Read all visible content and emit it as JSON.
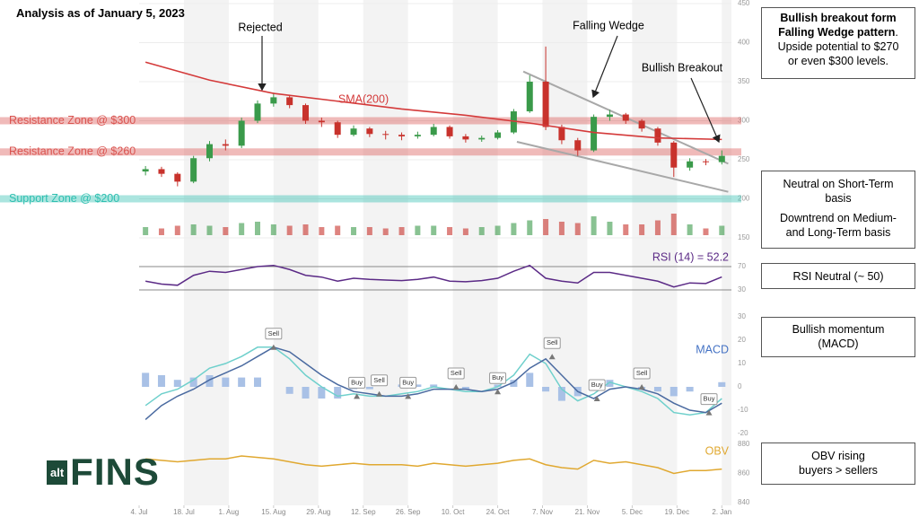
{
  "title": "Analysis as of January 5, 2023",
  "logo": {
    "small": "alt",
    "big": "FINS"
  },
  "notes": [
    {
      "bold": [
        "Bullish breakout form",
        "Falling Wedge pattern"
      ],
      "text": [
        ".",
        "Upside potential to $270",
        "or even $300 levels."
      ]
    },
    {
      "paragraphs": [
        [
          "Neutral on Short-Term",
          "basis"
        ],
        [
          "Downtrend on Medium-",
          "and Long-Term basis"
        ]
      ]
    },
    {
      "lines": [
        "RSI Neutral (~ 50)"
      ]
    },
    {
      "lines": [
        "Bullish momentum",
        "(MACD)"
      ]
    },
    {
      "lines": [
        "OBV rising",
        "buyers > sellers"
      ]
    }
  ],
  "chart_data": [
    {
      "type": "candlestick",
      "up_color": "#3a9a4a",
      "down_color": "#c8322c",
      "xlim": [
        0,
        185
      ],
      "xticks": [
        {
          "value": 0,
          "label": "4. Jul"
        },
        {
          "value": 14,
          "label": "18. Jul"
        },
        {
          "value": 28,
          "label": "1. Aug"
        },
        {
          "value": 42,
          "label": "15. Aug"
        },
        {
          "value": 56,
          "label": "29. Aug"
        },
        {
          "value": 70,
          "label": "12. Sep"
        },
        {
          "value": 84,
          "label": "26. Sep"
        },
        {
          "value": 98,
          "label": "10. Oct"
        },
        {
          "value": 112,
          "label": "24. Oct"
        },
        {
          "value": 126,
          "label": "7. Nov"
        },
        {
          "value": 140,
          "label": "21. Nov"
        },
        {
          "value": 154,
          "label": "5. Dec"
        },
        {
          "value": 168,
          "label": "19. Dec"
        },
        {
          "value": 182,
          "label": "2. Jan"
        }
      ],
      "ylim": [
        150,
        450
      ],
      "yticks": [
        150,
        200,
        250,
        300,
        350,
        400,
        450
      ],
      "grid": true,
      "x": [
        2,
        7,
        12,
        17,
        22,
        27,
        32,
        37,
        42,
        47,
        52,
        57,
        62,
        67,
        72,
        77,
        82,
        87,
        92,
        97,
        102,
        107,
        112,
        117,
        122,
        127,
        132,
        137,
        142,
        147,
        152,
        157,
        162,
        167,
        172,
        177,
        182
      ],
      "open": [
        235,
        238,
        232,
        222,
        252,
        270,
        268,
        300,
        322,
        330,
        320,
        300,
        298,
        282,
        290,
        283,
        282,
        280,
        282,
        292,
        280,
        276,
        278,
        285,
        312,
        350,
        292,
        275,
        262,
        305,
        308,
        300,
        290,
        272,
        240,
        248,
        247
      ],
      "high": [
        242,
        241,
        234,
        255,
        274,
        276,
        304,
        326,
        336,
        333,
        322,
        304,
        300,
        294,
        292,
        287,
        285,
        286,
        296,
        294,
        283,
        281,
        288,
        315,
        358,
        395,
        295,
        278,
        308,
        314,
        310,
        302,
        292,
        274,
        252,
        251,
        262
      ],
      "low": [
        230,
        228,
        216,
        220,
        248,
        262,
        265,
        297,
        318,
        316,
        296,
        292,
        278,
        280,
        279,
        276,
        275,
        277,
        280,
        277,
        272,
        273,
        276,
        283,
        310,
        288,
        270,
        255,
        260,
        300,
        296,
        286,
        268,
        228,
        236,
        243,
        244
      ],
      "close": [
        238,
        232,
        222,
        252,
        270,
        268,
        300,
        322,
        330,
        320,
        300,
        298,
        282,
        290,
        283,
        282,
        280,
        282,
        292,
        280,
        276,
        278,
        285,
        312,
        350,
        292,
        275,
        262,
        305,
        308,
        300,
        290,
        272,
        240,
        248,
        247,
        255
      ],
      "series": [
        {
          "name": "SMA(200)",
          "color": "#d43a3a",
          "x": [
            2,
            22,
            42,
            62,
            82,
            102,
            122,
            142,
            162,
            182
          ],
          "values": [
            375,
            352,
            335,
            325,
            315,
            307,
            297,
            285,
            278,
            276
          ]
        }
      ],
      "zones": [
        {
          "label": "Resistance Zone @ $300",
          "value": 300,
          "color": "#d9534f"
        },
        {
          "label": "Resistance Zone @ $260",
          "value": 260,
          "color": "#d9534f"
        },
        {
          "label": "Support Zone @ $200",
          "value": 200,
          "color": "#2ebfb0"
        }
      ],
      "trendlines": [
        {
          "color": "#a8a8a8",
          "x": [
            120,
            184
          ],
          "values": [
            363,
            245
          ]
        },
        {
          "color": "#a8a8a8",
          "x": [
            118,
            184
          ],
          "values": [
            273,
            209
          ]
        }
      ],
      "annotations": [
        "Rejected",
        "Falling Wedge",
        "Bullish Breakout"
      ]
    },
    {
      "type": "bar",
      "ylim": [
        0,
        100
      ],
      "values": [
        30,
        25,
        35,
        40,
        35,
        30,
        45,
        50,
        40,
        35,
        40,
        30,
        35,
        30,
        30,
        25,
        30,
        35,
        35,
        30,
        25,
        30,
        35,
        45,
        55,
        60,
        50,
        45,
        70,
        50,
        40,
        40,
        55,
        80,
        40,
        25,
        35
      ]
    },
    {
      "type": "line",
      "label": "RSI (14) = 52.2",
      "label_color": "#5b2a86",
      "ylim": [
        20,
        80
      ],
      "yticks": [
        30,
        70
      ],
      "grid": true,
      "series": [
        {
          "color": "#5b2a86",
          "values": [
            45,
            40,
            38,
            55,
            62,
            60,
            65,
            70,
            72,
            65,
            55,
            52,
            45,
            50,
            48,
            47,
            46,
            48,
            52,
            45,
            44,
            46,
            50,
            62,
            72,
            50,
            45,
            42,
            60,
            60,
            55,
            50,
            45,
            35,
            42,
            41,
            52.2
          ]
        }
      ]
    },
    {
      "type": "macd",
      "label": "MACD",
      "label_color": "#4472c4",
      "ylim": [
        -20,
        30
      ],
      "yticks": [
        -20,
        -10,
        0,
        10,
        20,
        30
      ],
      "grid": false,
      "series": [
        {
          "color": "#6fd0cc",
          "values": [
            -8,
            -3,
            -1,
            3,
            8,
            10,
            13,
            17,
            17,
            12,
            5,
            0,
            -4,
            -3,
            -4,
            -4,
            -3,
            -2,
            0,
            -1,
            -2,
            -2,
            0,
            5,
            14,
            10,
            -1,
            -6,
            -3,
            2,
            0,
            -2,
            -5,
            -11,
            -12,
            -11,
            -5
          ]
        },
        {
          "color": "#4a6aa0",
          "values": [
            -14,
            -8,
            -4,
            -1,
            3,
            6,
            9,
            13,
            17,
            15,
            10,
            5,
            1,
            -2,
            -3,
            -4,
            -4,
            -3,
            -1,
            -1,
            -1,
            -2,
            -1,
            2,
            8,
            12,
            5,
            -2,
            -5,
            -1,
            0,
            -1,
            -3,
            -7,
            -10,
            -11,
            -7
          ]
        }
      ],
      "histogram": {
        "color": "#a9c1e6",
        "values": [
          6,
          5,
          3,
          4,
          5,
          4,
          4,
          4,
          0,
          -3,
          -5,
          -5,
          -5,
          -1,
          -1,
          0,
          1,
          1,
          1,
          0,
          -1,
          0,
          1,
          3,
          6,
          -2,
          -6,
          -4,
          2,
          3,
          0,
          -1,
          -2,
          -4,
          -2,
          0,
          2
        ]
      },
      "signals": [
        {
          "label": "Sell",
          "x": 42,
          "value": 17
        },
        {
          "label": "Buy",
          "x": 68,
          "value": -4
        },
        {
          "label": "Sell",
          "x": 75,
          "value": -3
        },
        {
          "label": "Buy",
          "x": 84,
          "value": -4
        },
        {
          "label": "Sell",
          "x": 99,
          "value": 0
        },
        {
          "label": "Buy",
          "x": 112,
          "value": -2
        },
        {
          "label": "Sell",
          "x": 129,
          "value": 13
        },
        {
          "label": "Buy",
          "x": 143,
          "value": -5
        },
        {
          "label": "Sell",
          "x": 157,
          "value": 0
        },
        {
          "label": "Buy",
          "x": 178,
          "value": -11
        }
      ]
    },
    {
      "type": "line",
      "label": "OBV",
      "label_color": "#e0a830",
      "ylim": [
        840,
        880
      ],
      "yticks": [
        840,
        860,
        880
      ],
      "grid": false,
      "series": [
        {
          "color": "#e0a830",
          "values": [
            870,
            869,
            868,
            869,
            870,
            870,
            872,
            871,
            870,
            868,
            866,
            865,
            866,
            867,
            866,
            866,
            866,
            865,
            867,
            866,
            865,
            866,
            867,
            869,
            870,
            866,
            864,
            863,
            869,
            867,
            868,
            866,
            864,
            860,
            862,
            862,
            863
          ]
        }
      ]
    }
  ]
}
